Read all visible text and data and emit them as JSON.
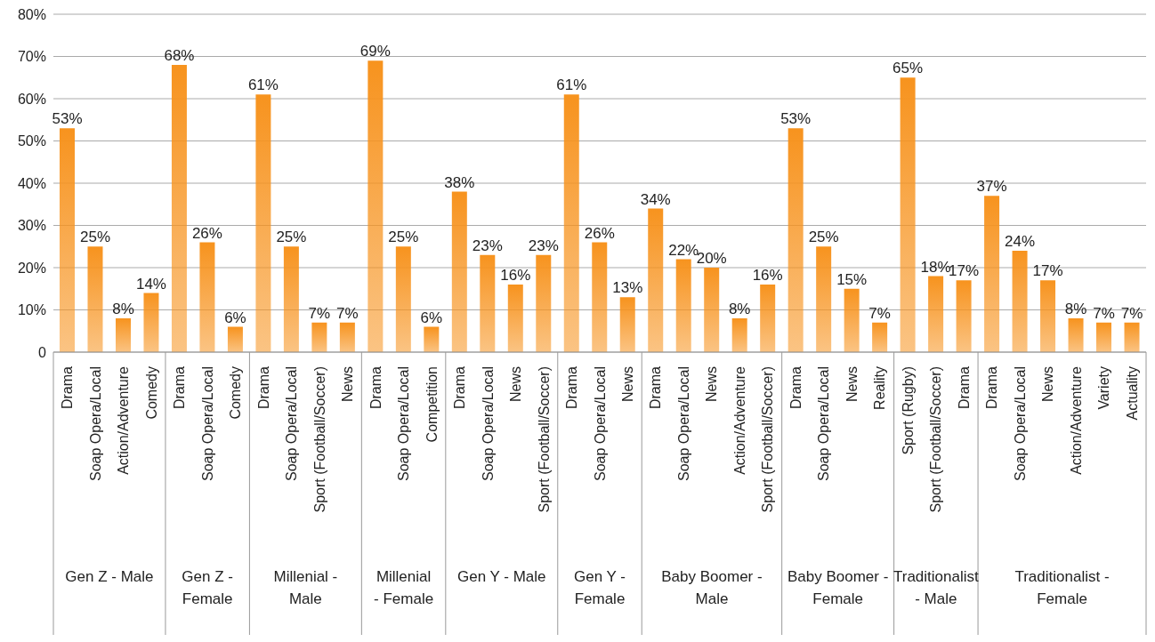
{
  "chart_data": {
    "type": "bar",
    "categories": [
      "Drama",
      "Soap Opera/Local",
      "Action/Adventure",
      "Comedy",
      "Drama",
      "Soap Opera/Local",
      "Comedy",
      "Drama",
      "Soap Opera/Local",
      "Sport (Football/Soccer)",
      "News",
      "Drama",
      "Soap Opera/Local",
      "Competition",
      "Drama",
      "Soap Opera/Local",
      "News",
      "Sport (Football/Soccer)",
      "Drama",
      "Soap Opera/Local",
      "News",
      "Drama",
      "Soap Opera/Local",
      "News",
      "Action/Adventure",
      "Sport (Football/Soccer)",
      "Drama",
      "Soap Opera/Local",
      "News",
      "Reality",
      "Sport (Rugby)",
      "Sport (Football/Soccer)",
      "Drama",
      "Drama",
      "Soap Opera/Local",
      "News",
      "Action/Adventure",
      "Variety",
      "Actuality"
    ],
    "values": [
      53,
      25,
      8,
      14,
      68,
      26,
      6,
      61,
      25,
      7,
      7,
      69,
      25,
      6,
      38,
      23,
      16,
      23,
      61,
      26,
      13,
      34,
      22,
      20,
      8,
      16,
      53,
      25,
      15,
      7,
      65,
      18,
      17,
      37,
      24,
      17,
      8,
      7,
      7
    ],
    "value_labels": [
      "53%",
      "25%",
      "8%",
      "14%",
      "68%",
      "26%",
      "6%",
      "61%",
      "25%",
      "7%",
      "7%",
      "69%",
      "25%",
      "6%",
      "38%",
      "23%",
      "16%",
      "23%",
      "61%",
      "26%",
      "13%",
      "34%",
      "22%",
      "20%",
      "8%",
      "16%",
      "53%",
      "25%",
      "15%",
      "7%",
      "65%",
      "18%",
      "17%",
      "37%",
      "24%",
      "17%",
      "8%",
      "7%",
      "7%"
    ],
    "color": "#f7931e",
    "ylim": [
      0,
      80
    ],
    "yticks": [
      0,
      {
        "value": 10,
        "label": "10%"
      },
      {
        "value": 20,
        "label": "20%"
      },
      {
        "value": 30,
        "label": "30%"
      },
      {
        "value": 40,
        "label": "40%"
      },
      {
        "value": 50,
        "label": "50%"
      },
      {
        "value": 60,
        "label": "60%"
      },
      {
        "value": 70,
        "label": "70%"
      },
      {
        "value": 80,
        "label": "80%"
      }
    ],
    "grid": "y",
    "annotations": [
      "Gen Z - Male",
      "Gen Z - Female",
      "Millenial - Male",
      "Millenial - Female",
      "Gen Y - Male",
      "Gen Y - Female",
      "Baby Boomer - Male",
      "Baby Boomer - Female",
      "Traditionalist - Male",
      "Traditionalist - Female"
    ]
  }
}
